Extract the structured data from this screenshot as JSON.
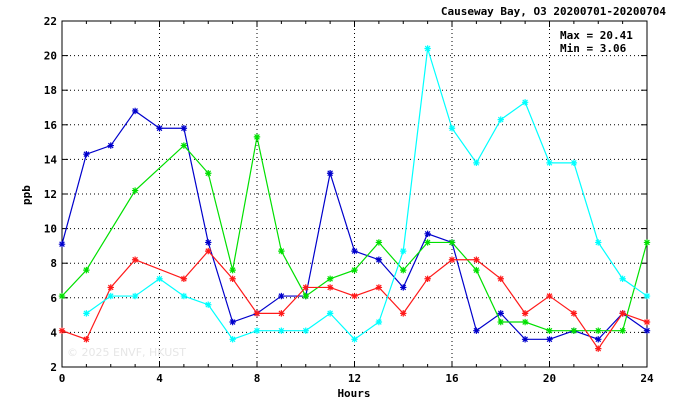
{
  "chart_data": {
    "type": "line",
    "title": "Causeway Bay, O3 20200701-20200704",
    "xlabel": "Hours",
    "ylabel": "ppb",
    "xlim": [
      0,
      24
    ],
    "ylim": [
      2,
      22
    ],
    "x_ticks": [
      0,
      4,
      8,
      12,
      16,
      20,
      24
    ],
    "y_ticks": [
      2,
      4,
      6,
      8,
      10,
      12,
      14,
      16,
      18,
      20,
      22
    ],
    "grid": true,
    "stats": {
      "max_text": "Max = 20.41",
      "min_text": "Min =  3.06"
    },
    "watermark": "© 2025  ENVF, HKUST",
    "x": [
      0,
      1,
      2,
      3,
      4,
      5,
      6,
      7,
      8,
      9,
      10,
      11,
      12,
      13,
      14,
      15,
      16,
      17,
      18,
      19,
      20,
      21,
      22,
      23,
      24
    ],
    "series": [
      {
        "color": "#0000cc",
        "values": [
          9.1,
          14.3,
          14.8,
          16.8,
          15.8,
          15.8,
          9.2,
          4.6,
          5.1,
          6.1,
          6.1,
          13.2,
          8.7,
          8.2,
          6.6,
          9.7,
          9.2,
          4.1,
          5.1,
          3.6,
          3.6,
          4.1,
          3.6,
          5.1,
          4.1
        ]
      },
      {
        "color": "#00e000",
        "values": [
          6.1,
          7.6,
          null,
          12.2,
          null,
          14.8,
          13.2,
          7.6,
          15.3,
          8.7,
          6.1,
          7.1,
          7.6,
          9.2,
          7.6,
          9.2,
          9.2,
          7.6,
          4.6,
          4.6,
          4.1,
          4.1,
          4.1,
          4.1,
          9.2
        ]
      },
      {
        "color": "#ff1a1a",
        "values": [
          4.1,
          3.6,
          6.6,
          8.2,
          null,
          7.1,
          8.7,
          7.1,
          5.1,
          5.1,
          6.6,
          6.6,
          6.1,
          6.6,
          5.1,
          7.1,
          8.2,
          8.2,
          7.1,
          5.1,
          6.1,
          5.1,
          3.06,
          5.1,
          4.6
        ]
      },
      {
        "color": "#00ffff",
        "values": [
          null,
          5.1,
          6.1,
          6.1,
          7.1,
          6.1,
          5.6,
          3.6,
          4.1,
          4.1,
          4.1,
          5.1,
          3.6,
          4.6,
          8.7,
          20.41,
          15.8,
          13.8,
          16.3,
          17.3,
          13.8,
          13.8,
          9.2,
          7.1,
          6.1
        ]
      }
    ]
  }
}
